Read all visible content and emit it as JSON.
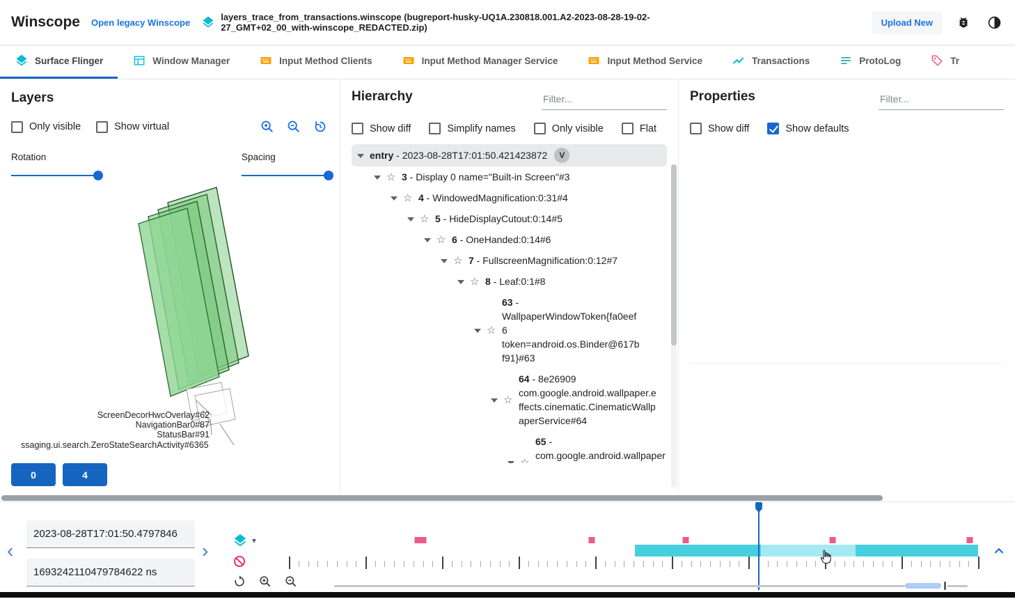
{
  "topbar": {
    "app_title": "Winscope",
    "legacy_link": "Open legacy Winscope",
    "trace_file": "layers_trace_from_transactions.winscope (bugreport-husky-UQ1A.230818.001.A2-2023-08-28-19-02-27_GMT+02_00_with-winscope_REDACTED.zip)",
    "upload_button": "Upload New"
  },
  "tabs": [
    {
      "label": "Surface Flinger",
      "icon": "layers-icon",
      "active": true
    },
    {
      "label": "Window Manager",
      "icon": "window-icon",
      "active": false
    },
    {
      "label": "Input Method Clients",
      "icon": "keyboard-icon",
      "active": false
    },
    {
      "label": "Input Method Manager Service",
      "icon": "keyboard-icon",
      "active": false
    },
    {
      "label": "Input Method Service",
      "icon": "keyboard-icon",
      "active": false
    },
    {
      "label": "Transactions",
      "icon": "chart-icon",
      "active": false
    },
    {
      "label": "ProtoLog",
      "icon": "list-icon",
      "active": false
    },
    {
      "label": "Tr",
      "icon": "tag-icon",
      "active": false
    }
  ],
  "layers": {
    "title": "Layers",
    "only_visible_label": "Only visible",
    "show_virtual_label": "Show virtual",
    "only_visible_checked": false,
    "show_virtual_checked": false,
    "rotation_label": "Rotation",
    "spacing_label": "Spacing",
    "rotation_percent": 100,
    "spacing_percent": 100,
    "layer_labels": [
      "ScreenDecorHwcOverlay#62",
      "NavigationBar0#87",
      "StatusBar#91",
      "ssaging.ui.search.ZeroStateSearchActivity#6365"
    ],
    "buttons": [
      {
        "label": "0"
      },
      {
        "label": "4"
      }
    ],
    "layer_fill_color": "#84cf89",
    "layer_stroke_color": "#2a5d2c"
  },
  "hierarchy": {
    "title": "Hierarchy",
    "filter_placeholder": "Filter...",
    "sep": " - ",
    "star_icon": "☆",
    "options": [
      {
        "label": "Show diff",
        "checked": false
      },
      {
        "label": "Simplify names",
        "checked": false
      },
      {
        "label": "Only visible",
        "checked": false
      },
      {
        "label": "Flat",
        "checked": false
      }
    ],
    "tree": [
      {
        "id": "entry",
        "name": "2023-08-28T17:01:50.421423872",
        "badge": "V"
      },
      {
        "id": "3",
        "name": "Display 0 name=\"Built-in Screen\"#3"
      },
      {
        "id": "4",
        "name": "WindowedMagnification:0:31#4"
      },
      {
        "id": "5",
        "name": "HideDisplayCutout:0:14#5"
      },
      {
        "id": "6",
        "name": "OneHanded:0:14#6"
      },
      {
        "id": "7",
        "name": "FullscreenMagnification:0:12#7"
      },
      {
        "id": "8",
        "name": "Leaf:0:1#8"
      },
      {
        "id": "63",
        "name": "WallpaperWindowToken{fa0eef6 token=android.os.Binder@617bf91}#63"
      },
      {
        "id": "64",
        "name": "8e26909 com.google.android.wallpaper.effects.cinematic.CinematicWallpaperService#64"
      },
      {
        "id": "65",
        "name": "com.google.android.wallpaper.effects.cinematic.CinematicWallpaperSer"
      }
    ]
  },
  "properties": {
    "title": "Properties",
    "filter_placeholder": "Filter...",
    "options": [
      {
        "label": "Show diff",
        "checked": false
      },
      {
        "label": "Show defaults",
        "checked": true
      }
    ]
  },
  "timeline": {
    "prev_icon": "‹",
    "next_icon": "›",
    "caret_icon": "▾",
    "time_human": "2023-08-28T17:01:50.4797846",
    "time_ns": "1693242110479784622 ns",
    "marker_color": "#ec5c87",
    "markers_percent": [
      18.7,
      19.5,
      43.9,
      57.6,
      78.9,
      98.8
    ],
    "cursor_percent": 68.2,
    "cursor_color": "#1565c0",
    "segments": [
      {
        "start": 50.2,
        "end": 100,
        "color": "#47cfe0"
      }
    ],
    "subsegments": [
      {
        "start": 68.5,
        "end": 82.2,
        "color": "#a5e9f3"
      }
    ],
    "tick_count": 72,
    "major_every": 8,
    "range_slider": {
      "track_start": 6.6,
      "track_end": 98.5,
      "sel_start": 89.4,
      "sel_end": 94.6,
      "handle": 95.1
    }
  }
}
